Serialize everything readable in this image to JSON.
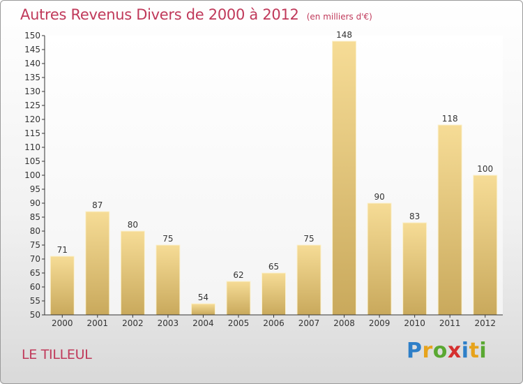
{
  "title": "Autres Revenus Divers de 2000 à 2012",
  "subtitle": "(en milliers d'€)",
  "commune": "LE TILLEUL",
  "logo": {
    "text": "Proxiti",
    "letters": [
      {
        "char": "P",
        "color": "#2e7fc8"
      },
      {
        "char": "r",
        "color": "#e7a31c"
      },
      {
        "char": "o",
        "color": "#5aa832"
      },
      {
        "char": "x",
        "color": "#d5302f"
      },
      {
        "char": "i",
        "color": "#2e7fc8"
      },
      {
        "char": "t",
        "color": "#e7a31c"
      },
      {
        "char": "i",
        "color": "#5aa832"
      }
    ]
  },
  "colors": {
    "title": "#c0395a",
    "bar_light": "#f6dc96",
    "bar_dark": "#c9a95c",
    "axis": "#333333",
    "grid": "#e3e3e3"
  },
  "chart_data": {
    "type": "bar",
    "categories": [
      "2000",
      "2001",
      "2002",
      "2003",
      "2004",
      "2005",
      "2006",
      "2007",
      "2008",
      "2009",
      "2010",
      "2011",
      "2012"
    ],
    "values": [
      71,
      87,
      80,
      75,
      54,
      62,
      65,
      75,
      148,
      90,
      83,
      118,
      100
    ],
    "ylim": [
      50,
      150
    ],
    "ytick_step": 5,
    "grid": false,
    "data_labels": true,
    "xlabel": "",
    "ylabel": ""
  }
}
